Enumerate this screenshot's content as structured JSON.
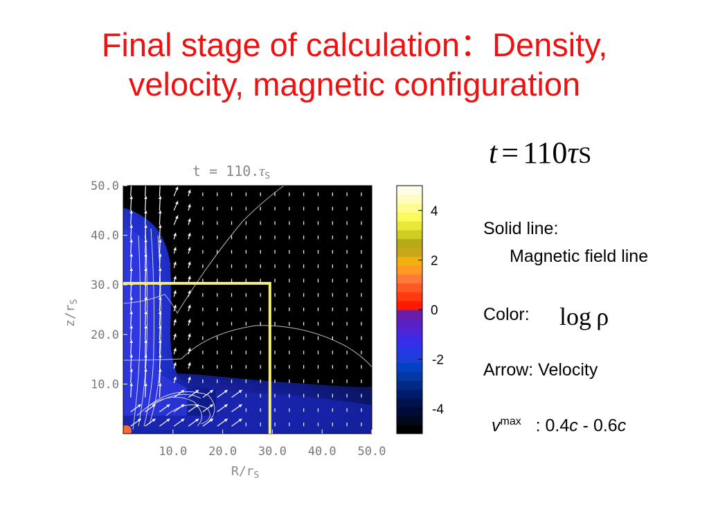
{
  "slide": {
    "title_line1": "Final stage of calculation：Density,",
    "title_line2": "velocity, magnetic configuration"
  },
  "formula": {
    "var": "t",
    "eq": "=",
    "value": "110",
    "tau": "τ",
    "sub": "S"
  },
  "plot": {
    "title_prefix": "t = 110.",
    "title_tau": "τ",
    "title_sub": "S",
    "xlabel": "R/r",
    "xlabel_sub": "S",
    "ylabel": "z/r",
    "ylabel_sub": "S",
    "xticks": [
      "10.0",
      "20.0",
      "30.0",
      "40.0",
      "50.0"
    ],
    "yticks": [
      "10.0",
      "20.0",
      "30.0",
      "40.0",
      "50.0"
    ],
    "xlim": [
      0,
      50
    ],
    "ylim": [
      0,
      50
    ],
    "box_R": 29.5,
    "box_z": 30.3,
    "box_color": "#f5f07a",
    "background_color": "#000000"
  },
  "colorbar": {
    "range": [
      -5,
      5
    ],
    "ticks": [
      "4",
      "2",
      "0",
      "-2",
      "-4"
    ],
    "tick_values": [
      4,
      2,
      0,
      -2,
      -4
    ],
    "colors": [
      "#000000",
      "#000a1e",
      "#000c38",
      "#00114f",
      "#001b6a",
      "#002a88",
      "#0038a4",
      "#0042c2",
      "#1a3ed6",
      "#2a35e6",
      "#3a2ceb",
      "#4a26d8",
      "#5a20c2",
      "#6d1ca6",
      "#ff1a00",
      "#ff3a10",
      "#ff5a25",
      "#ff7a3a",
      "#ff9a25",
      "#f2b010",
      "#c8a818",
      "#b6aa16",
      "#cfcc22",
      "#e8e83a",
      "#fafa5a",
      "#fcfc90",
      "#fdfdc0",
      "#fefee6"
    ]
  },
  "legend": {
    "solid_label": "Solid line:",
    "solid_desc": "Magnetic field line",
    "color_label": "Color:",
    "color_formula": "log ρ",
    "arrow_label": "Arrow: Velocity",
    "vmax_v": "v",
    "vmax_sup": "max",
    "vmax_colon": ": 0.4",
    "vmax_c1": "c",
    "vmax_dash": " - 0.6",
    "vmax_c2": "c"
  }
}
